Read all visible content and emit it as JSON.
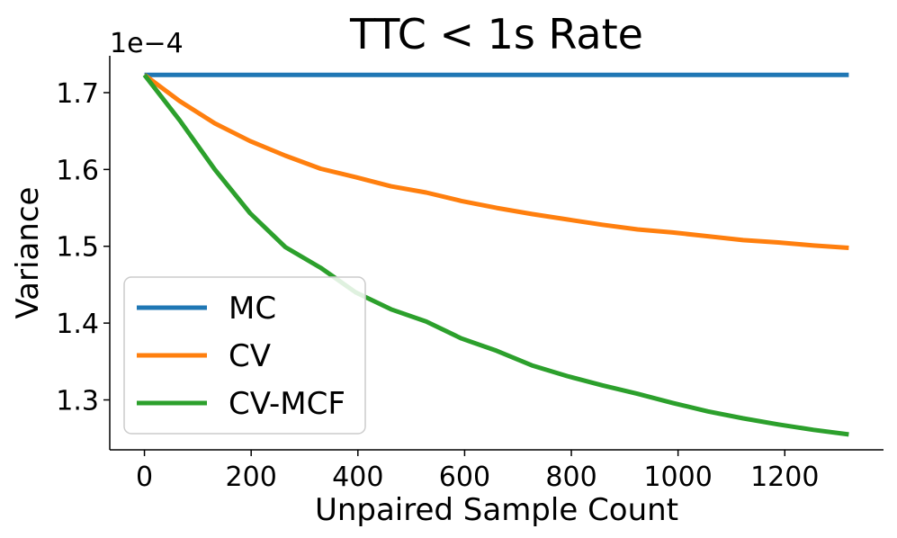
{
  "chart_data": {
    "type": "line",
    "title": "TTC < 1s Rate",
    "xlabel": "Unpaired Sample Count",
    "ylabel": "Variance",
    "y_offset_label": "1e−4",
    "xlim": [
      -65,
      1385
    ],
    "ylim": [
      1.235,
      1.748
    ],
    "xticks": [
      0,
      200,
      400,
      600,
      800,
      1000,
      1200
    ],
    "xtick_labels": [
      "0",
      "200",
      "400",
      "600",
      "800",
      "1000",
      "1200"
    ],
    "yticks": [
      1.3,
      1.4,
      1.5,
      1.6,
      1.7
    ],
    "ytick_labels": [
      "1.3",
      "1.4",
      "1.5",
      "1.6",
      "1.7"
    ],
    "grid": false,
    "legend_position": "lower-left",
    "x": [
      0,
      66,
      132,
      198,
      264,
      330,
      396,
      462,
      528,
      594,
      660,
      726,
      792,
      858,
      924,
      990,
      1056,
      1122,
      1188,
      1254,
      1320
    ],
    "series": [
      {
        "name": "MC",
        "color": "#1f77b4",
        "values": [
          1.723,
          1.723,
          1.723,
          1.723,
          1.723,
          1.723,
          1.723,
          1.723,
          1.723,
          1.723,
          1.723,
          1.723,
          1.723,
          1.723,
          1.723,
          1.723,
          1.723,
          1.723,
          1.723,
          1.723,
          1.723
        ]
      },
      {
        "name": "CV",
        "color": "#ff7f0e",
        "values": [
          1.723,
          1.689,
          1.66,
          1.637,
          1.618,
          1.601,
          1.59,
          1.578,
          1.57,
          1.559,
          1.55,
          1.542,
          1.535,
          1.528,
          1.522,
          1.518,
          1.513,
          1.508,
          1.505,
          1.501,
          1.498
        ]
      },
      {
        "name": "CV-MCF",
        "color": "#2ca02c",
        "values": [
          1.723,
          1.664,
          1.6,
          1.543,
          1.499,
          1.472,
          1.44,
          1.418,
          1.402,
          1.38,
          1.364,
          1.345,
          1.331,
          1.319,
          1.308,
          1.296,
          1.285,
          1.276,
          1.268,
          1.261,
          1.255
        ]
      }
    ]
  }
}
